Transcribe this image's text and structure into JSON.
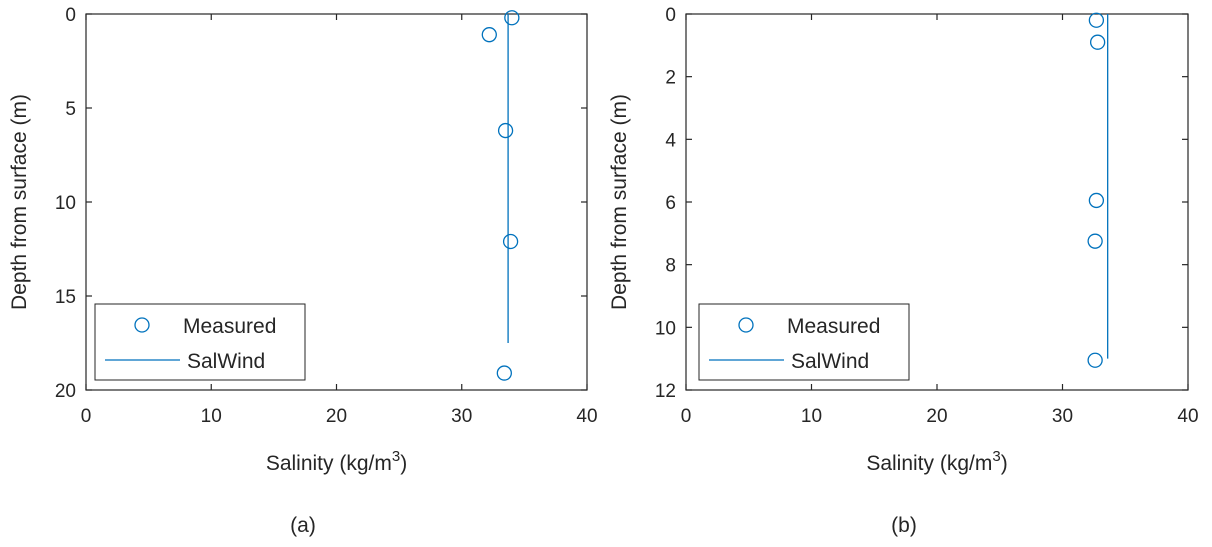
{
  "colors": {
    "series": "#0072bd",
    "axes": "#262626",
    "background": "#ffffff"
  },
  "chart_data": [
    {
      "type": "scatter",
      "caption": "(a)",
      "xlabel": "Salinity (kg/m",
      "xlabel_sup": "3",
      "xlabel_end": ")",
      "ylabel": "Depth from surface (m)",
      "xlim": [
        0,
        40
      ],
      "ylim": [
        0,
        20
      ],
      "y_reversed": true,
      "xticks": [
        0,
        10,
        20,
        30,
        40
      ],
      "yticks": [
        0,
        5,
        10,
        15,
        20
      ],
      "grid": false,
      "legend_position": "bottom-left",
      "series": [
        {
          "name": "Measured",
          "marker": "circle",
          "points": [
            {
              "x": 34.0,
              "y": 0.2
            },
            {
              "x": 32.2,
              "y": 1.1
            },
            {
              "x": 33.5,
              "y": 6.2
            },
            {
              "x": 33.9,
              "y": 12.1
            },
            {
              "x": 33.4,
              "y": 19.1
            }
          ]
        },
        {
          "name": "SalWind",
          "line": true,
          "points": [
            {
              "x": 33.7,
              "y": 0
            },
            {
              "x": 33.7,
              "y": 17.5
            }
          ]
        }
      ]
    },
    {
      "type": "scatter",
      "caption": "(b)",
      "xlabel": "Salinity (kg/m",
      "xlabel_sup": "3",
      "xlabel_end": ")",
      "ylabel": "Depth from surface (m)",
      "xlim": [
        0,
        40
      ],
      "ylim": [
        0,
        12
      ],
      "y_reversed": true,
      "xticks": [
        0,
        10,
        20,
        30,
        40
      ],
      "yticks": [
        0,
        2,
        4,
        6,
        8,
        10,
        12
      ],
      "grid": false,
      "legend_position": "bottom-left",
      "series": [
        {
          "name": "Measured",
          "marker": "circle",
          "points": [
            {
              "x": 32.7,
              "y": 0.2
            },
            {
              "x": 32.8,
              "y": 0.9
            },
            {
              "x": 32.7,
              "y": 5.95
            },
            {
              "x": 32.6,
              "y": 7.25
            },
            {
              "x": 32.6,
              "y": 11.05
            }
          ]
        },
        {
          "name": "SalWind",
          "line": true,
          "points": [
            {
              "x": 33.6,
              "y": 0
            },
            {
              "x": 33.6,
              "y": 11.0
            }
          ]
        }
      ]
    }
  ]
}
